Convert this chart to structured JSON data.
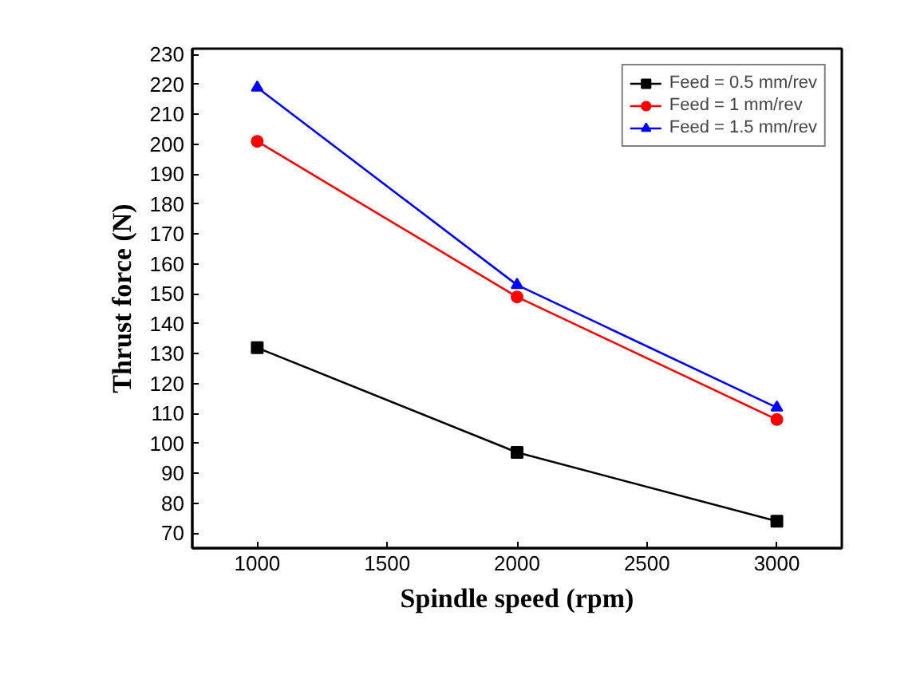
{
  "chart_data": {
    "type": "line",
    "xlabel": "Spindle speed (rpm)",
    "ylabel": "Thrust force (N)",
    "x": [
      1000,
      2000,
      3000
    ],
    "series": [
      {
        "name": "Feed = 0.5 mm/rev",
        "color": "#000000",
        "marker": "square",
        "values": [
          132,
          97,
          74
        ]
      },
      {
        "name": "Feed = 1 mm/rev",
        "color": "#ff0000",
        "marker": "circle",
        "values": [
          201,
          149,
          108
        ]
      },
      {
        "name": "Feed = 1.5 mm/rev",
        "color": "#0000ff",
        "marker": "triangle",
        "values": [
          219,
          153,
          112
        ]
      }
    ],
    "xlim": [
      750,
      3250
    ],
    "xticks": [
      1000,
      1500,
      2000,
      2500,
      3000
    ],
    "ylim": [
      65,
      232
    ],
    "yticks": [
      70,
      80,
      90,
      100,
      110,
      120,
      130,
      140,
      150,
      160,
      170,
      180,
      190,
      200,
      210,
      220,
      230
    ],
    "grid": false,
    "legend": "top right",
    "line_style": "solid"
  }
}
